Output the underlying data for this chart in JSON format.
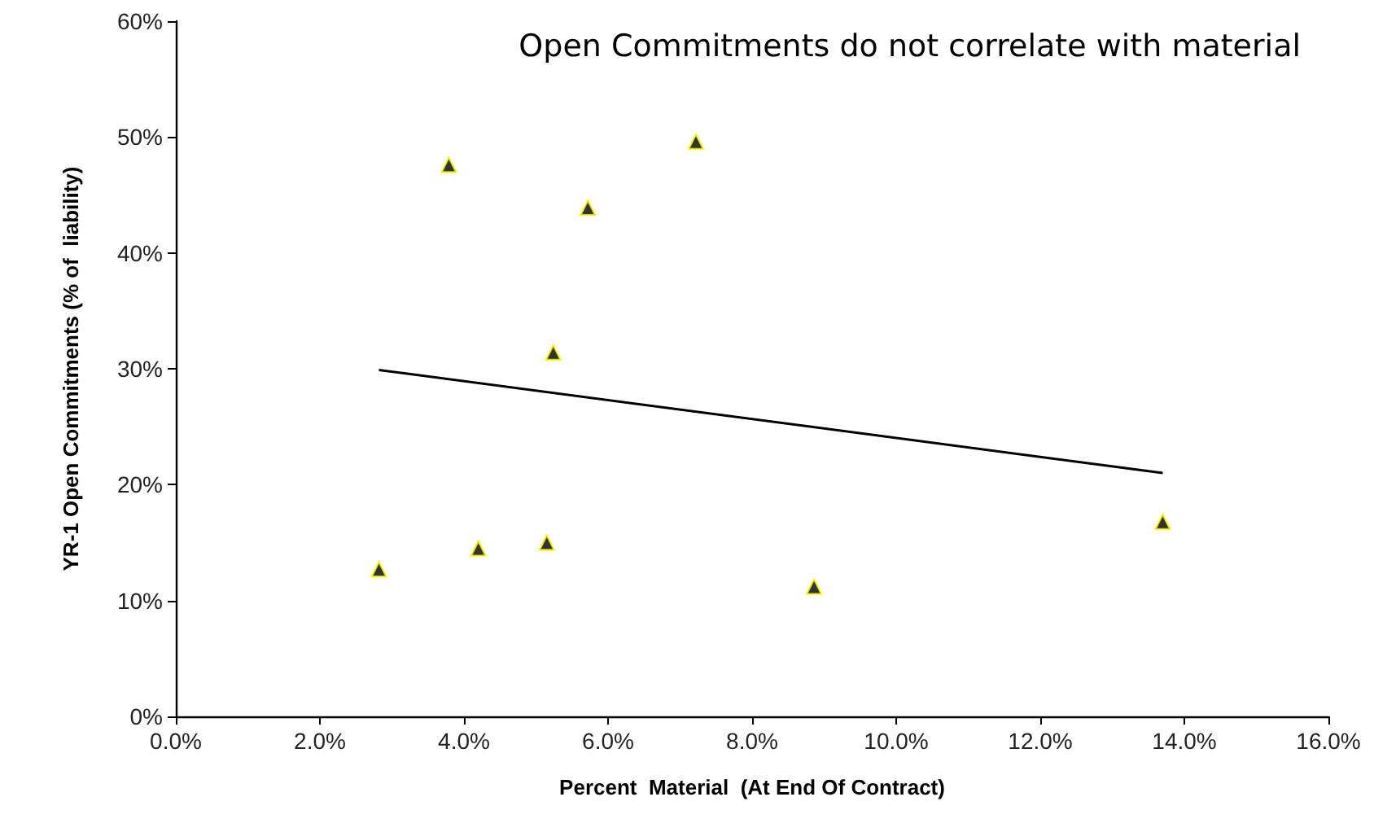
{
  "chart_data": {
    "type": "scatter",
    "title": "Open Commitments do not correlate with material",
    "xlabel": "Percent  Material  (At End Of Contract)",
    "ylabel": "YR-1 Open Commitments (% of  liability)",
    "xlim": [
      0,
      16
    ],
    "xticks": [
      {
        "value": 0,
        "label": "0.0%"
      },
      {
        "value": 2,
        "label": "2.0%"
      },
      {
        "value": 4,
        "label": "4.0%"
      },
      {
        "value": 6,
        "label": "6.0%"
      },
      {
        "value": 8,
        "label": "8.0%"
      },
      {
        "value": 10,
        "label": "10.0%"
      },
      {
        "value": 12,
        "label": "12.0%"
      },
      {
        "value": 14,
        "label": "14.0%"
      },
      {
        "value": 16,
        "label": "16.0%"
      }
    ],
    "ylim": [
      0,
      60
    ],
    "yticks": [
      {
        "value": 0,
        "label": "0%"
      },
      {
        "value": 10,
        "label": "10%"
      },
      {
        "value": 20,
        "label": "20%"
      },
      {
        "value": 30,
        "label": "30%"
      },
      {
        "value": 40,
        "label": "40%"
      },
      {
        "value": 50,
        "label": "50%"
      },
      {
        "value": 60,
        "label": "60%"
      }
    ],
    "grid": false,
    "series": [
      {
        "type": "scatter",
        "color": "#000000",
        "marker": "triangle",
        "x": [
          2.82,
          3.79,
          4.2,
          5.15,
          5.24,
          5.72,
          7.22,
          8.86,
          13.7
        ],
        "values": [
          12.7,
          47.6,
          14.5,
          15.0,
          31.4,
          43.9,
          49.6,
          11.2,
          16.8
        ]
      },
      {
        "type": "line",
        "color": "#000000",
        "marker": "none",
        "line_style": "solid",
        "x": [
          2.82,
          13.7
        ],
        "values": [
          29.9,
          21.0
        ]
      }
    ]
  }
}
